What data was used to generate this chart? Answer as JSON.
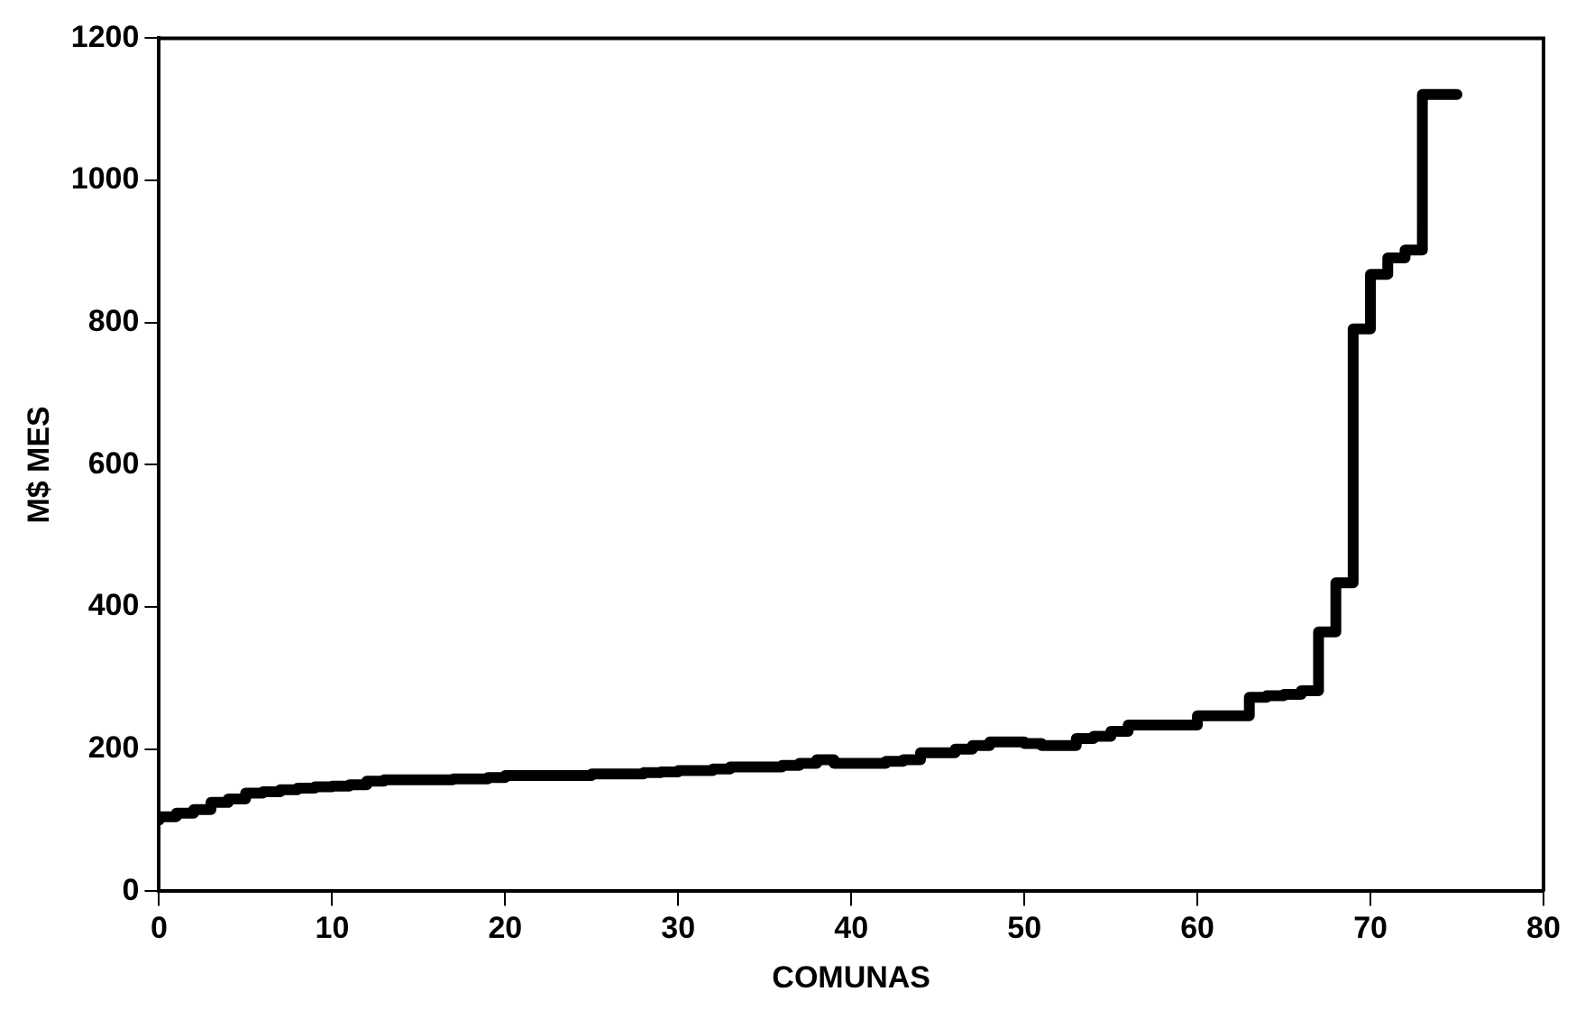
{
  "chart_data": {
    "type": "step",
    "xlabel": "COMUNAS",
    "ylabel": "M$ MES",
    "xlim": [
      0,
      80
    ],
    "xticks": [
      0,
      10,
      20,
      30,
      40,
      50,
      60,
      70,
      80
    ],
    "ylim": [
      0,
      1200
    ],
    "yticks": [
      0,
      200,
      400,
      600,
      800,
      1000,
      1200
    ],
    "grid": false,
    "legend": false,
    "marker": "none",
    "line_style": "solid",
    "x": [
      0,
      1,
      2,
      3,
      4,
      5,
      6,
      7,
      8,
      9,
      10,
      11,
      12,
      13,
      14,
      15,
      16,
      17,
      18,
      19,
      20,
      21,
      22,
      23,
      24,
      25,
      26,
      27,
      28,
      29,
      30,
      31,
      32,
      33,
      34,
      35,
      36,
      37,
      38,
      39,
      40,
      41,
      42,
      43,
      44,
      45,
      46,
      47,
      48,
      49,
      50,
      51,
      52,
      53,
      54,
      55,
      56,
      57,
      58,
      59,
      60,
      61,
      62,
      63,
      64,
      65,
      66,
      67,
      68,
      69,
      70,
      71,
      72,
      73,
      74,
      75
    ],
    "series": [
      {
        "color": "#000000",
        "values": [
          100,
          105,
          110,
          115,
          125,
          130,
          138,
          140,
          143,
          145,
          147,
          148,
          150,
          155,
          157,
          157,
          157,
          157,
          158,
          158,
          160,
          163,
          163,
          163,
          163,
          163,
          165,
          165,
          165,
          167,
          168,
          170,
          170,
          172,
          175,
          175,
          175,
          177,
          180,
          185,
          180,
          180,
          180,
          183,
          185,
          195,
          195,
          200,
          205,
          210,
          210,
          208,
          205,
          205,
          215,
          218,
          225,
          234,
          234,
          234,
          234,
          247,
          247,
          247,
          273,
          275,
          277,
          282,
          365,
          434,
          791,
          868,
          891,
          902,
          1121,
          1121
        ]
      }
    ]
  }
}
